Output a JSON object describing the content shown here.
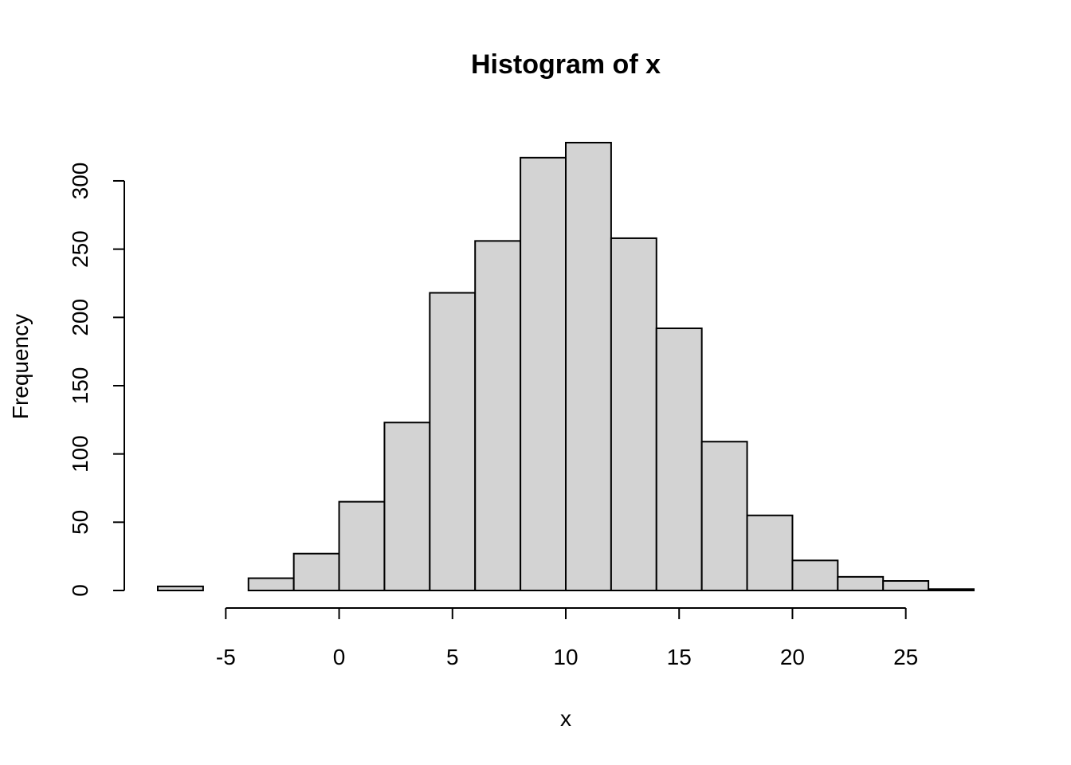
{
  "chart_data": {
    "type": "histogram",
    "title": "Histogram of x",
    "xlabel": "x",
    "ylabel": "Frequency",
    "bar_color": "#d3d3d3",
    "bar_border_color": "#000000",
    "bins": [
      {
        "start": -8,
        "end": -6,
        "count": 3
      },
      {
        "start": -6,
        "end": -4,
        "count": 0
      },
      {
        "start": -4,
        "end": -2,
        "count": 9
      },
      {
        "start": -2,
        "end": 0,
        "count": 27
      },
      {
        "start": 0,
        "end": 2,
        "count": 65
      },
      {
        "start": 2,
        "end": 4,
        "count": 123
      },
      {
        "start": 4,
        "end": 6,
        "count": 218
      },
      {
        "start": 6,
        "end": 8,
        "count": 256
      },
      {
        "start": 8,
        "end": 10,
        "count": 317
      },
      {
        "start": 10,
        "end": 12,
        "count": 328
      },
      {
        "start": 12,
        "end": 14,
        "count": 258
      },
      {
        "start": 14,
        "end": 16,
        "count": 192
      },
      {
        "start": 16,
        "end": 18,
        "count": 109
      },
      {
        "start": 18,
        "end": 20,
        "count": 55
      },
      {
        "start": 20,
        "end": 22,
        "count": 22
      },
      {
        "start": 22,
        "end": 24,
        "count": 10
      },
      {
        "start": 24,
        "end": 26,
        "count": 7
      },
      {
        "start": 26,
        "end": 28,
        "count": 1
      }
    ],
    "xticks": [
      -5,
      0,
      5,
      10,
      15,
      20,
      25
    ],
    "yticks": [
      0,
      50,
      100,
      150,
      200,
      250,
      300
    ],
    "xlim": [
      -8,
      28
    ],
    "ylim": [
      0,
      328
    ],
    "grid": false,
    "legend": "none"
  }
}
